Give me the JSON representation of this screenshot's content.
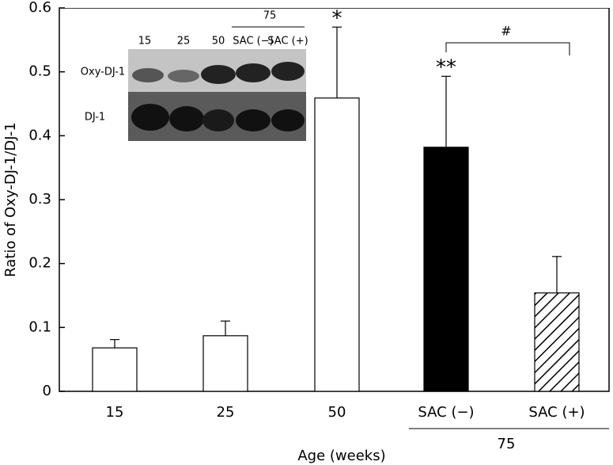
{
  "chart_data": {
    "type": "bar",
    "y_label": "Ratio of Oxy-DJ-1/DJ-1",
    "x_label": "Age (weeks)",
    "categories": [
      "15",
      "25",
      "50",
      "SAC (−)",
      "SAC (+)"
    ],
    "group_label": "75",
    "values": [
      0.068,
      0.087,
      0.459,
      0.382,
      0.154
    ],
    "errors": [
      0.013,
      0.023,
      0.111,
      0.111,
      0.057
    ],
    "colors": [
      "white",
      "white",
      "white",
      "black",
      "hatch"
    ],
    "ylim": [
      0,
      0.6
    ],
    "yticks": [
      0,
      0.1,
      0.2,
      0.3,
      0.4,
      0.5,
      0.6
    ],
    "annotations": [
      "*",
      "**",
      "#"
    ],
    "inset": {
      "lanes": [
        "15",
        "25",
        "50",
        "SAC (−)",
        "SAC (+)"
      ],
      "lane_group": "75",
      "rows": [
        "Oxy-DJ-1",
        "DJ-1"
      ]
    }
  }
}
